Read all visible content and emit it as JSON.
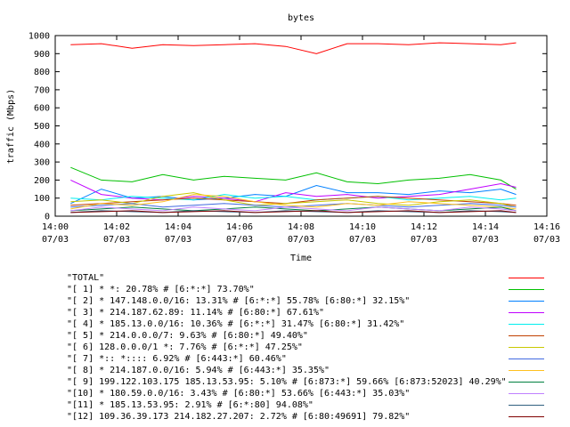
{
  "chart_data": {
    "type": "line",
    "title": "bytes",
    "xlabel": "Time",
    "ylabel": "traffic (Mbps)",
    "ylim": [
      0,
      1000
    ],
    "yticks": [
      "0",
      "100",
      "200",
      "300",
      "400",
      "500",
      "600",
      "700",
      "800",
      "900",
      "1000"
    ],
    "xlim": [
      "14:00",
      "14:16"
    ],
    "xticks": [
      {
        "time": "14:00",
        "date": "07/03"
      },
      {
        "time": "14:02",
        "date": "07/03"
      },
      {
        "time": "14:04",
        "date": "07/03"
      },
      {
        "time": "14:06",
        "date": "07/03"
      },
      {
        "time": "14:08",
        "date": "07/03"
      },
      {
        "time": "14:10",
        "date": "07/03"
      },
      {
        "time": "14:12",
        "date": "07/03"
      },
      {
        "time": "14:14",
        "date": "07/03"
      },
      {
        "time": "14:16",
        "date": "07/03"
      }
    ],
    "x": [
      "14:00:30",
      "14:01:30",
      "14:02:30",
      "14:03:30",
      "14:04:30",
      "14:05:30",
      "14:06:30",
      "14:07:30",
      "14:08:30",
      "14:09:30",
      "14:10:30",
      "14:11:30",
      "14:12:30",
      "14:13:30",
      "14:14:30",
      "14:15:00"
    ],
    "grid": false,
    "legend_position": "bottom",
    "series": [
      {
        "name": "\"TOTAL\"",
        "color": "#ff0000",
        "values": [
          950,
          955,
          930,
          950,
          945,
          950,
          955,
          940,
          900,
          955,
          955,
          950,
          960,
          955,
          950,
          960
        ]
      },
      {
        "name": "\"[ 1] * *: 20.78% # [6:*:*] 73.70%\"",
        "color": "#00c000",
        "values": [
          270,
          200,
          190,
          230,
          200,
          220,
          210,
          200,
          240,
          190,
          180,
          200,
          210,
          230,
          200,
          150
        ]
      },
      {
        "name": "\"[ 2] * 147.148.0.0/16: 13.31% # [6:*:*] 55.78% [6:80:*] 32.15%\"",
        "color": "#0080ff",
        "values": [
          70,
          150,
          100,
          110,
          90,
          100,
          120,
          110,
          170,
          130,
          130,
          120,
          140,
          130,
          150,
          120
        ]
      },
      {
        "name": "\"[ 3] * 214.187.62.89: 11.14% # [6:80:*] 67.61%\"",
        "color": "#c000ff",
        "values": [
          200,
          120,
          100,
          90,
          110,
          100,
          80,
          130,
          110,
          120,
          100,
          110,
          120,
          150,
          180,
          160
        ]
      },
      {
        "name": "\"[ 4] * 185.13.0.0/16: 10.36% # [6:*:*] 31.47% [6:80:*] 31.42%\"",
        "color": "#00eeee",
        "values": [
          100,
          90,
          110,
          100,
          90,
          120,
          100,
          110,
          90,
          100,
          110,
          90,
          100,
          110,
          90,
          100
        ]
      },
      {
        "name": "\"[ 5] * 214.0.0.0/7: 9.63% # [6:80:*] 49.40%\"",
        "color": "#c04000",
        "values": [
          60,
          70,
          80,
          90,
          100,
          90,
          80,
          70,
          90,
          100,
          110,
          100,
          90,
          80,
          70,
          60
        ]
      },
      {
        "name": "\"[ 6] 128.0.0.0/1 *: 7.76% # [6:*:*] 47.25%\"",
        "color": "#c8c800",
        "values": [
          80,
          90,
          70,
          110,
          130,
          90,
          60,
          70,
          80,
          90,
          70,
          60,
          80,
          90,
          70,
          50
        ]
      },
      {
        "name": "\"[ 7] *:: *:::: 6.92% # [6:443:*] 60.46%\"",
        "color": "#4169e1",
        "values": [
          50,
          60,
          70,
          50,
          60,
          70,
          60,
          50,
          60,
          70,
          60,
          50,
          60,
          70,
          60,
          50
        ]
      },
      {
        "name": "\"[ 8] * 214.187.0.0/16: 5.94% # [6:443:*] 35.35%\"",
        "color": "#ffc020",
        "values": [
          40,
          70,
          60,
          80,
          120,
          110,
          80,
          60,
          50,
          70,
          60,
          80,
          70,
          60,
          50,
          40
        ]
      },
      {
        "name": "\"[ 9] 199.122.103.175 185.13.53.95: 5.10% # [6:873:*] 59.66% [6:873:52023] 40.29%\"",
        "color": "#008040",
        "values": [
          30,
          40,
          50,
          40,
          30,
          40,
          50,
          40,
          30,
          40,
          50,
          40,
          30,
          40,
          50,
          30
        ]
      },
      {
        "name": "\"[10] * 180.59.0.0/16: 3.43% # [6:80:*] 53.66% [6:443:*] 35.03%\"",
        "color": "#c080ff",
        "values": [
          30,
          50,
          40,
          30,
          50,
          40,
          30,
          50,
          40,
          30,
          50,
          40,
          30,
          50,
          40,
          30
        ]
      },
      {
        "name": "\"[11] * 185.13.53.95: 2.91% # [6:*:80] 94.08%\"",
        "color": "#306080",
        "values": [
          20,
          30,
          25,
          20,
          30,
          25,
          20,
          30,
          25,
          20,
          30,
          25,
          20,
          30,
          25,
          20
        ]
      },
      {
        "name": "\"[12] 109.36.39.173 214.182.27.207: 2.72% # [6:80:49691] 79.82%\"",
        "color": "#800000",
        "values": [
          20,
          25,
          30,
          20,
          25,
          30,
          20,
          25,
          30,
          20,
          25,
          30,
          20,
          25,
          30,
          20
        ]
      }
    ]
  }
}
